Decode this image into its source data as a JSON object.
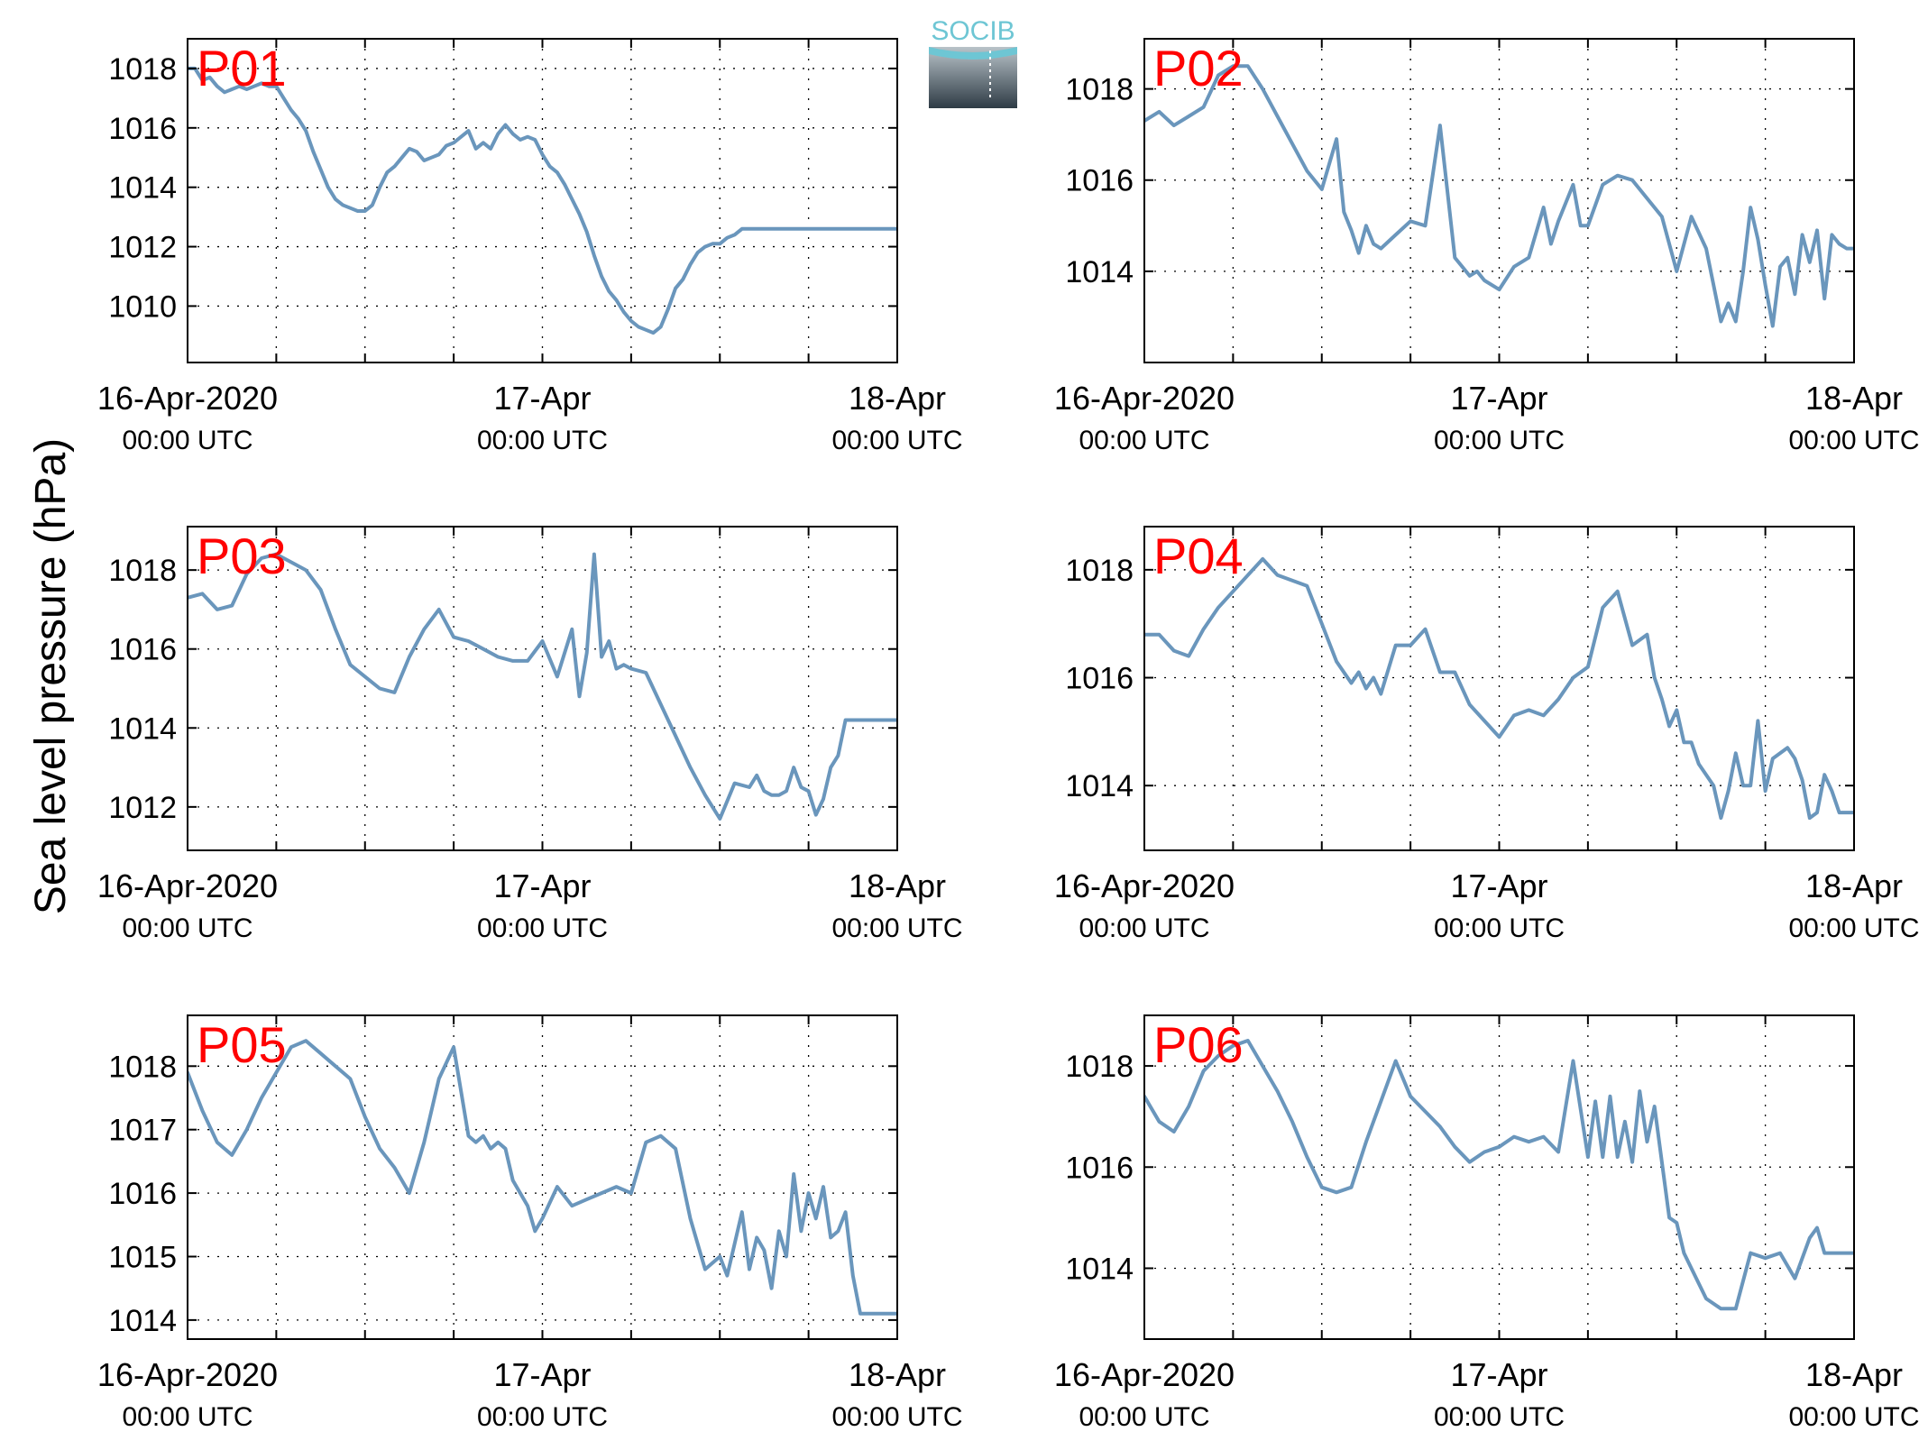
{
  "figure": {
    "ylabel": "Sea level pressure (hPa)",
    "logo": {
      "text": "SOCIB",
      "colors": {
        "top": "#6ec6d4",
        "bottom": "#2e3b45"
      }
    },
    "colors": {
      "line": "#6a96bc",
      "title": "#ff0000",
      "axes": "#000000",
      "grid": "#000000"
    },
    "x_tick_labels": [
      {
        "t": 0,
        "line1": "16-Apr-2020",
        "line2": "00:00 UTC"
      },
      {
        "t": 24,
        "line1": "17-Apr",
        "line2": "00:00 UTC"
      },
      {
        "t": 48,
        "line1": "18-Apr",
        "line2": "00:00 UTC"
      }
    ],
    "x_grid_hours": [
      6,
      12,
      18,
      24,
      30,
      36,
      42
    ]
  },
  "chart_data": [
    {
      "type": "line",
      "title": "P01",
      "x_unit": "hours since 16-Apr-2020 00:00 UTC",
      "xlim": [
        0,
        48
      ],
      "ylim": [
        1008.1,
        1019
      ],
      "yticks": [
        1010,
        1012,
        1014,
        1016,
        1018
      ],
      "grid": true,
      "x": [
        0,
        0.5,
        1,
        1.5,
        2,
        2.5,
        3,
        3.5,
        4,
        4.5,
        5,
        5.5,
        6,
        6.5,
        7,
        7.5,
        8,
        8.5,
        9,
        9.5,
        10,
        10.5,
        11,
        11.5,
        12,
        12.5,
        13,
        13.5,
        14,
        14.5,
        15,
        15.5,
        16,
        16.5,
        17,
        17.5,
        18,
        18.5,
        19,
        19.5,
        20,
        20.5,
        21,
        21.5,
        22,
        22.5,
        23,
        23.5,
        24,
        24.5,
        25,
        25.5,
        26,
        26.5,
        27,
        27.5,
        28,
        28.5,
        29,
        29.5,
        30,
        30.5,
        31,
        31.5,
        32,
        32.5,
        33,
        33.5,
        34,
        34.5,
        35,
        35.5,
        36,
        36.5,
        37,
        37.5,
        38,
        38.5,
        39,
        39.5,
        40,
        40.5,
        41,
        41.5,
        42,
        42.5,
        43,
        43.5,
        44,
        44.5,
        45,
        45.5,
        46,
        46.5,
        47,
        47.5,
        48
      ],
      "y": [
        1018.0,
        1018.0,
        1017.6,
        1017.7,
        1017.4,
        1017.2,
        1017.3,
        1017.4,
        1017.3,
        1017.4,
        1017.5,
        1017.4,
        1017.4,
        1017.0,
        1016.6,
        1016.3,
        1015.9,
        1015.2,
        1014.6,
        1014.0,
        1013.6,
        1013.4,
        1013.3,
        1013.2,
        1013.2,
        1013.4,
        1014.0,
        1014.5,
        1014.7,
        1015.0,
        1015.3,
        1015.2,
        1014.9,
        1015.0,
        1015.1,
        1015.4,
        1015.5,
        1015.7,
        1015.9,
        1015.3,
        1015.5,
        1015.3,
        1015.8,
        1016.1,
        1015.8,
        1015.6,
        1015.7,
        1015.6,
        1015.1,
        1014.7,
        1014.5,
        1014.1,
        1013.6,
        1013.1,
        1012.5,
        1011.7,
        1011.0,
        1010.5,
        1010.2,
        1009.8,
        1009.5,
        1009.3,
        1009.2,
        1009.1,
        1009.3,
        1009.9,
        1010.6,
        1010.9,
        1011.4,
        1011.8,
        1012.0,
        1012.1,
        1012.1,
        1012.3,
        1012.4,
        1012.6,
        1012.6,
        1012.6,
        1012.6,
        1012.6,
        1012.6,
        1012.6,
        1012.6,
        1012.6,
        1012.6,
        1012.6,
        1012.6,
        1012.6,
        1012.6,
        1012.6,
        1012.6,
        1012.6,
        1012.6,
        1012.6,
        1012.6,
        1012.6,
        1012.6
      ]
    },
    {
      "type": "line",
      "title": "P02",
      "x_unit": "hours since 16-Apr-2020 00:00 UTC",
      "xlim": [
        0,
        48
      ],
      "ylim": [
        1012.0,
        1019.1
      ],
      "yticks": [
        1014,
        1016,
        1018
      ],
      "grid": true,
      "x": [
        0,
        1,
        2,
        3,
        4,
        5,
        6,
        7,
        8,
        9,
        10,
        11,
        12,
        13,
        13.5,
        14,
        14.5,
        15,
        15.5,
        16,
        17,
        18,
        19,
        20,
        21,
        21.5,
        22,
        22.5,
        23,
        24,
        25,
        26,
        27,
        27.5,
        28,
        29,
        29.5,
        30,
        31,
        32,
        33,
        34,
        35,
        36,
        37,
        38,
        39,
        39.5,
        40,
        40.5,
        41,
        41.5,
        42,
        42.5,
        43,
        43.5,
        44,
        44.5,
        45,
        45.5,
        46,
        46.5,
        47,
        47.5,
        48
      ],
      "y": [
        1017.3,
        1017.5,
        1017.2,
        1017.4,
        1017.6,
        1018.3,
        1018.5,
        1018.5,
        1018.0,
        1017.4,
        1016.8,
        1016.2,
        1015.8,
        1016.9,
        1015.3,
        1014.9,
        1014.4,
        1015.0,
        1014.6,
        1014.5,
        1014.8,
        1015.1,
        1015.0,
        1017.2,
        1014.3,
        1014.1,
        1013.9,
        1014.0,
        1013.8,
        1013.6,
        1014.1,
        1014.3,
        1015.4,
        1014.6,
        1015.1,
        1015.9,
        1015.0,
        1015.0,
        1015.9,
        1016.1,
        1016.0,
        1015.6,
        1015.2,
        1014.0,
        1015.2,
        1014.5,
        1012.9,
        1013.3,
        1012.9,
        1014.0,
        1015.4,
        1014.7,
        1013.7,
        1012.8,
        1014.1,
        1014.3,
        1013.5,
        1014.8,
        1014.2,
        1014.9,
        1013.4,
        1014.8,
        1014.6,
        1014.5,
        1014.5
      ]
    },
    {
      "type": "line",
      "title": "P03",
      "x_unit": "hours since 16-Apr-2020 00:00 UTC",
      "xlim": [
        0,
        48
      ],
      "ylim": [
        1010.9,
        1019.1
      ],
      "yticks": [
        1012,
        1014,
        1016,
        1018
      ],
      "grid": true,
      "x": [
        0,
        1,
        2,
        3,
        4,
        5,
        6,
        7,
        8,
        9,
        10,
        11,
        12,
        13,
        14,
        15,
        16,
        17,
        18,
        19,
        20,
        21,
        22,
        23,
        24,
        25,
        26,
        26.5,
        27,
        27.5,
        28,
        28.5,
        29,
        29.5,
        30,
        31,
        32,
        33,
        34,
        35,
        36,
        37,
        38,
        38.5,
        39,
        39.5,
        40,
        40.5,
        41,
        41.5,
        42,
        42.5,
        43,
        43.5,
        44,
        44.5,
        45,
        45.5,
        46,
        46.5,
        47,
        47.5,
        48
      ],
      "y": [
        1017.3,
        1017.4,
        1017.0,
        1017.1,
        1017.9,
        1018.3,
        1018.4,
        1018.2,
        1018.0,
        1017.5,
        1016.5,
        1015.6,
        1015.3,
        1015.0,
        1014.9,
        1015.8,
        1016.5,
        1017.0,
        1016.3,
        1016.2,
        1016.0,
        1015.8,
        1015.7,
        1015.7,
        1016.2,
        1015.3,
        1016.5,
        1014.8,
        1015.9,
        1018.4,
        1015.8,
        1016.2,
        1015.5,
        1015.6,
        1015.5,
        1015.4,
        1014.6,
        1013.8,
        1013.0,
        1012.3,
        1011.7,
        1012.6,
        1012.5,
        1012.8,
        1012.4,
        1012.3,
        1012.3,
        1012.4,
        1013.0,
        1012.5,
        1012.4,
        1011.8,
        1012.2,
        1013.0,
        1013.3,
        1014.2,
        1014.2,
        1014.2,
        1014.2,
        1014.2,
        1014.2,
        1014.2,
        1014.2
      ]
    },
    {
      "type": "line",
      "title": "P04",
      "x_unit": "hours since 16-Apr-2020 00:00 UTC",
      "xlim": [
        0,
        48
      ],
      "ylim": [
        1012.8,
        1018.8
      ],
      "yticks": [
        1014,
        1016,
        1018
      ],
      "grid": true,
      "x": [
        0,
        1,
        2,
        3,
        4,
        5,
        6,
        7,
        8,
        9,
        10,
        11,
        12,
        13,
        14,
        14.5,
        15,
        15.5,
        16,
        17,
        18,
        19,
        20,
        21,
        22,
        23,
        24,
        25,
        26,
        27,
        28,
        29,
        30,
        31,
        32,
        33,
        34,
        34.5,
        35,
        35.5,
        36,
        36.5,
        37,
        37.5,
        38,
        38.5,
        39,
        39.5,
        40,
        40.5,
        41,
        41.5,
        42,
        42.5,
        43,
        43.5,
        44,
        44.5,
        45,
        45.5,
        46,
        46.5,
        47,
        47.5,
        48
      ],
      "y": [
        1016.8,
        1016.8,
        1016.5,
        1016.4,
        1016.9,
        1017.3,
        1017.6,
        1017.9,
        1018.2,
        1017.9,
        1017.8,
        1017.7,
        1017.0,
        1016.3,
        1015.9,
        1016.1,
        1015.8,
        1016.0,
        1015.7,
        1016.6,
        1016.6,
        1016.9,
        1016.1,
        1016.1,
        1015.5,
        1015.2,
        1014.9,
        1015.3,
        1015.4,
        1015.3,
        1015.6,
        1016.0,
        1016.2,
        1017.3,
        1017.6,
        1016.6,
        1016.8,
        1016.0,
        1015.6,
        1015.1,
        1015.4,
        1014.8,
        1014.8,
        1014.4,
        1014.2,
        1014.0,
        1013.4,
        1013.9,
        1014.6,
        1014.0,
        1014.0,
        1015.2,
        1013.9,
        1014.5,
        1014.6,
        1014.7,
        1014.5,
        1014.1,
        1013.4,
        1013.5,
        1014.2,
        1013.9,
        1013.5,
        1013.5,
        1013.5
      ]
    },
    {
      "type": "line",
      "title": "P05",
      "x_unit": "hours since 16-Apr-2020 00:00 UTC",
      "xlim": [
        0,
        48
      ],
      "ylim": [
        1013.7,
        1018.8
      ],
      "yticks": [
        1014,
        1015,
        1016,
        1017,
        1018
      ],
      "grid": true,
      "x": [
        0,
        1,
        2,
        3,
        4,
        5,
        6,
        7,
        8,
        9,
        10,
        11,
        12,
        13,
        14,
        15,
        16,
        17,
        18,
        19,
        19.5,
        20,
        20.5,
        21,
        21.5,
        22,
        22.5,
        23,
        23.5,
        24,
        25,
        26,
        27,
        28,
        29,
        30,
        31,
        32,
        33,
        34,
        35,
        36,
        36.5,
        37,
        37.5,
        38,
        38.5,
        39,
        39.5,
        40,
        40.5,
        41,
        41.5,
        42,
        42.5,
        43,
        43.5,
        44,
        44.5,
        45,
        45.5,
        46,
        46.5,
        47,
        47.5,
        48
      ],
      "y": [
        1017.9,
        1017.3,
        1016.8,
        1016.6,
        1017.0,
        1017.5,
        1017.9,
        1018.3,
        1018.4,
        1018.2,
        1018.0,
        1017.8,
        1017.2,
        1016.7,
        1016.4,
        1016.0,
        1016.8,
        1017.8,
        1018.3,
        1016.9,
        1016.8,
        1016.9,
        1016.7,
        1016.8,
        1016.7,
        1016.2,
        1016.0,
        1015.8,
        1015.4,
        1015.6,
        1016.1,
        1015.8,
        1015.9,
        1016.0,
        1016.1,
        1016.0,
        1016.8,
        1016.9,
        1016.7,
        1015.6,
        1014.8,
        1015.0,
        1014.7,
        1015.2,
        1015.7,
        1014.8,
        1015.3,
        1015.1,
        1014.5,
        1015.4,
        1015.0,
        1016.3,
        1015.4,
        1016.0,
        1015.6,
        1016.1,
        1015.3,
        1015.4,
        1015.7,
        1014.7,
        1014.1,
        1014.1,
        1014.1,
        1014.1,
        1014.1,
        1014.1
      ]
    },
    {
      "type": "line",
      "title": "P06",
      "x_unit": "hours since 16-Apr-2020 00:00 UTC",
      "xlim": [
        0,
        48
      ],
      "ylim": [
        1012.6,
        1019.0
      ],
      "yticks": [
        1014,
        1016,
        1018
      ],
      "grid": true,
      "x": [
        0,
        1,
        2,
        3,
        4,
        5,
        6,
        7,
        8,
        9,
        10,
        11,
        12,
        13,
        14,
        15,
        16,
        17,
        18,
        19,
        20,
        21,
        22,
        23,
        24,
        25,
        26,
        27,
        28,
        29,
        30,
        30.5,
        31,
        31.5,
        32,
        32.5,
        33,
        33.5,
        34,
        34.5,
        35,
        35.5,
        36,
        36.5,
        37,
        38,
        39,
        40,
        41,
        42,
        43,
        44,
        45,
        45.5,
        46,
        46.5,
        47,
        47.5,
        48
      ],
      "y": [
        1017.4,
        1016.9,
        1016.7,
        1017.2,
        1017.9,
        1018.2,
        1018.4,
        1018.5,
        1018.0,
        1017.5,
        1016.9,
        1016.2,
        1015.6,
        1015.5,
        1015.6,
        1016.5,
        1017.3,
        1018.1,
        1017.4,
        1017.1,
        1016.8,
        1016.4,
        1016.1,
        1016.3,
        1016.4,
        1016.6,
        1016.5,
        1016.6,
        1016.3,
        1018.1,
        1016.2,
        1017.3,
        1016.2,
        1017.4,
        1016.2,
        1016.9,
        1016.1,
        1017.5,
        1016.5,
        1017.2,
        1016.1,
        1015.0,
        1014.9,
        1014.3,
        1014.0,
        1013.4,
        1013.2,
        1013.2,
        1014.3,
        1014.2,
        1014.3,
        1013.8,
        1014.6,
        1014.8,
        1014.3,
        1014.3,
        1014.3,
        1014.3,
        1014.3
      ]
    }
  ]
}
